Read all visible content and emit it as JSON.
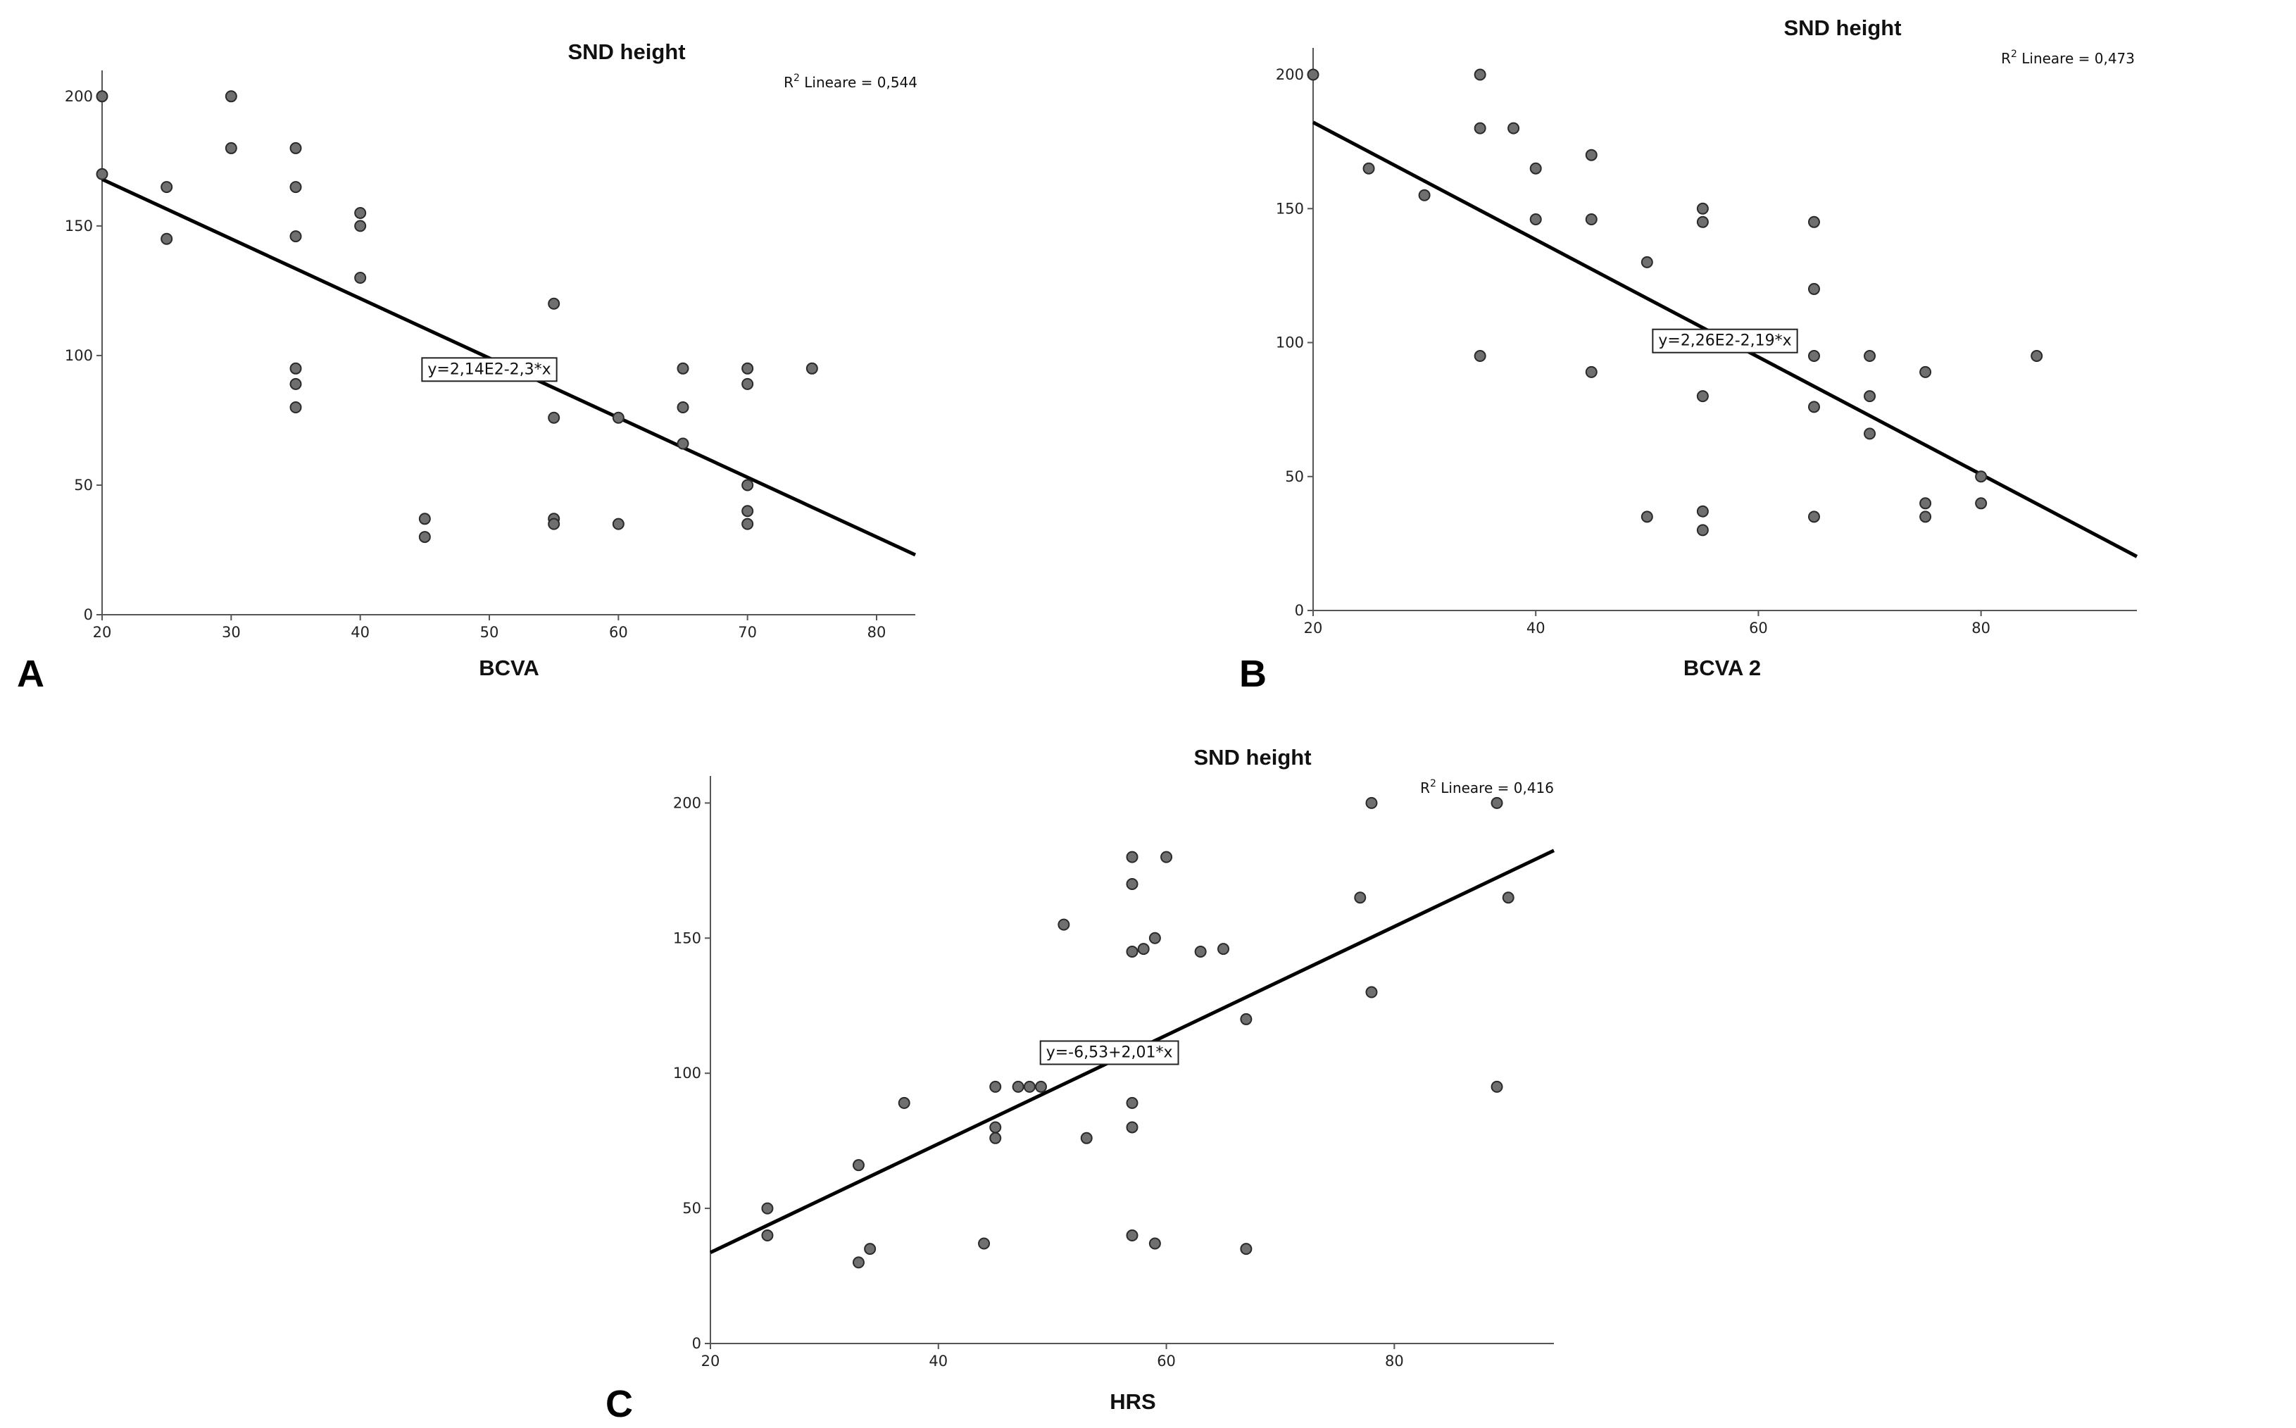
{
  "chart_data": [
    {
      "type": "scatter",
      "panel_letter": "A",
      "title": "SND height",
      "xlabel": "BCVA",
      "ylabel": "",
      "xlim": [
        20,
        83
      ],
      "ylim": [
        0,
        210
      ],
      "xticks": [
        20,
        30,
        40,
        50,
        60,
        70,
        80
      ],
      "yticks": [
        0,
        50,
        100,
        150,
        200
      ],
      "grid": false,
      "r2_prefix": "R",
      "r2_sup": "2",
      "r2_text": " Lineare = 0,544",
      "fit": {
        "intercept": 214,
        "slope": -2.3,
        "x_range": [
          20,
          83
        ],
        "equation": "y=2,14E2-2,3*x",
        "label_x": 50,
        "label_y": 95
      },
      "points": [
        [
          20,
          200
        ],
        [
          20,
          170
        ],
        [
          25,
          165
        ],
        [
          25,
          145
        ],
        [
          30,
          200
        ],
        [
          30,
          180
        ],
        [
          35,
          180
        ],
        [
          35,
          165
        ],
        [
          35,
          146
        ],
        [
          35,
          95
        ],
        [
          35,
          89
        ],
        [
          35,
          80
        ],
        [
          40,
          155
        ],
        [
          40,
          150
        ],
        [
          40,
          130
        ],
        [
          45,
          37
        ],
        [
          45,
          30
        ],
        [
          55,
          120
        ],
        [
          55,
          76
        ],
        [
          55,
          37
        ],
        [
          55,
          35
        ],
        [
          60,
          76
        ],
        [
          60,
          35
        ],
        [
          65,
          95
        ],
        [
          65,
          80
        ],
        [
          65,
          66
        ],
        [
          70,
          95
        ],
        [
          70,
          89
        ],
        [
          70,
          50
        ],
        [
          70,
          40
        ],
        [
          70,
          35
        ],
        [
          75,
          95
        ]
      ]
    },
    {
      "type": "scatter",
      "panel_letter": "B",
      "title": "SND height",
      "xlabel": "BCVA 2",
      "ylabel": "",
      "xlim": [
        20,
        94
      ],
      "ylim": [
        0,
        210
      ],
      "xticks": [
        20,
        40,
        60,
        80
      ],
      "yticks": [
        0,
        50,
        100,
        150,
        200
      ],
      "grid": false,
      "r2_prefix": "R",
      "r2_sup": "2",
      "r2_text": " Lineare = 0,473",
      "fit": {
        "intercept": 226,
        "slope": -2.19,
        "x_range": [
          20,
          94
        ],
        "equation": "y=2,26E2-2,19*x",
        "label_x": 57,
        "label_y": 101
      },
      "points": [
        [
          20,
          200
        ],
        [
          25,
          165
        ],
        [
          30,
          155
        ],
        [
          35,
          200
        ],
        [
          35,
          180
        ],
        [
          35,
          95
        ],
        [
          38,
          180
        ],
        [
          40,
          165
        ],
        [
          40,
          146
        ],
        [
          45,
          170
        ],
        [
          45,
          146
        ],
        [
          45,
          89
        ],
        [
          50,
          130
        ],
        [
          50,
          35
        ],
        [
          55,
          150
        ],
        [
          55,
          145
        ],
        [
          55,
          80
        ],
        [
          55,
          37
        ],
        [
          55,
          30
        ],
        [
          65,
          145
        ],
        [
          65,
          120
        ],
        [
          65,
          95
        ],
        [
          65,
          76
        ],
        [
          65,
          35
        ],
        [
          70,
          95
        ],
        [
          70,
          80
        ],
        [
          70,
          66
        ],
        [
          75,
          89
        ],
        [
          75,
          40
        ],
        [
          75,
          35
        ],
        [
          80,
          50
        ],
        [
          80,
          40
        ],
        [
          85,
          95
        ]
      ]
    },
    {
      "type": "scatter",
      "panel_letter": "C",
      "title": "SND height",
      "xlabel": "HRS",
      "ylabel": "",
      "xlim": [
        20,
        94
      ],
      "ylim": [
        0,
        210
      ],
      "xticks": [
        20,
        40,
        60,
        80
      ],
      "yticks": [
        0,
        50,
        100,
        150,
        200
      ],
      "grid": false,
      "r2_prefix": "R",
      "r2_sup": "2",
      "r2_text": " Lineare = 0,416",
      "fit": {
        "intercept": -6.53,
        "slope": 2.01,
        "x_range": [
          20,
          94
        ],
        "equation": "y=-6,53+2,01*x",
        "label_x": 55,
        "label_y": 108
      },
      "points": [
        [
          25,
          50
        ],
        [
          25,
          40
        ],
        [
          33,
          66
        ],
        [
          33,
          30
        ],
        [
          34,
          35
        ],
        [
          37,
          89
        ],
        [
          44,
          37
        ],
        [
          45,
          95
        ],
        [
          45,
          80
        ],
        [
          45,
          76
        ],
        [
          47,
          95
        ],
        [
          48,
          95
        ],
        [
          49,
          95
        ],
        [
          51,
          155
        ],
        [
          53,
          76
        ],
        [
          57,
          180
        ],
        [
          57,
          170
        ],
        [
          57,
          145
        ],
        [
          57,
          89
        ],
        [
          57,
          80
        ],
        [
          57,
          40
        ],
        [
          58,
          146
        ],
        [
          59,
          150
        ],
        [
          59,
          37
        ],
        [
          60,
          180
        ],
        [
          63,
          145
        ],
        [
          65,
          146
        ],
        [
          67,
          120
        ],
        [
          67,
          35
        ],
        [
          77,
          165
        ],
        [
          78,
          200
        ],
        [
          78,
          130
        ],
        [
          89,
          200
        ],
        [
          89,
          95
        ],
        [
          90,
          165
        ]
      ]
    }
  ]
}
